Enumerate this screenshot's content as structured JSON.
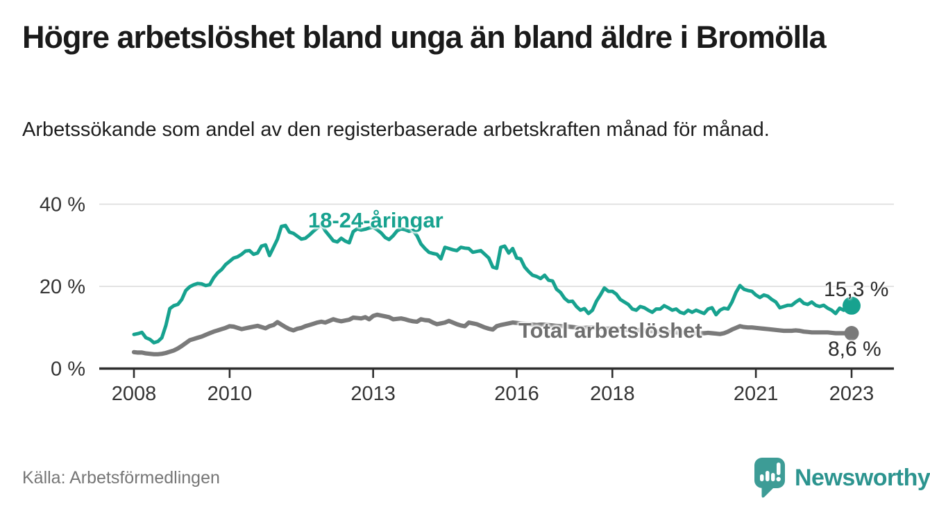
{
  "header": {
    "title": "Högre arbetslöshet bland unga än bland äldre i Bromölla",
    "subtitle": "Arbetssökande som andel av den registerbaserade arbetskraften månad för månad."
  },
  "chart_data": {
    "type": "line",
    "unit": "%",
    "frequency": "monthly",
    "x_start": "2008-01",
    "x_end": "2023-01",
    "ylim": [
      0,
      40
    ],
    "grid": "horizontal",
    "legend_position": "inline-labels",
    "yticks": [
      {
        "value": 0,
        "label": "0 %"
      },
      {
        "value": 20,
        "label": "20 %"
      },
      {
        "value": 40,
        "label": "40 %"
      }
    ],
    "xticks": [
      {
        "year": 2008,
        "label": "2008"
      },
      {
        "year": 2010,
        "label": "2010"
      },
      {
        "year": 2013,
        "label": "2013"
      },
      {
        "year": 2016,
        "label": "2016"
      },
      {
        "year": 2018,
        "label": "2018"
      },
      {
        "year": 2021,
        "label": "2021"
      },
      {
        "year": 2023,
        "label": "2023"
      }
    ],
    "series": [
      {
        "name": "18-24-åringar",
        "color": "#17a28f",
        "end_label": "15,3 %",
        "end_value": 15.3,
        "values": [
          8.3,
          8.5,
          8.8,
          7.5,
          7.1,
          6.3,
          6.6,
          7.5,
          10.5,
          14.6,
          15.3,
          15.6,
          16.8,
          19.0,
          19.9,
          20.4,
          20.7,
          20.6,
          20.2,
          20.4,
          22.1,
          23.3,
          24.1,
          25.3,
          26.1,
          26.9,
          27.2,
          27.8,
          28.6,
          28.7,
          27.8,
          28.1,
          29.8,
          30.1,
          27.5,
          29.5,
          31.5,
          34.6,
          34.8,
          33.2,
          32.9,
          32.2,
          31.5,
          31.7,
          32.5,
          33.4,
          34.2,
          35.1,
          33.5,
          32.3,
          31.1,
          30.8,
          31.7,
          31.0,
          30.6,
          33.3,
          34.0,
          33.7,
          33.9,
          34.2,
          34.4,
          33.8,
          33.0,
          31.9,
          31.4,
          32.3,
          33.5,
          34.0,
          33.8,
          33.4,
          33.6,
          32.3,
          30.3,
          29.2,
          28.3,
          28.0,
          27.8,
          26.7,
          29.5,
          29.2,
          28.9,
          28.7,
          29.5,
          29.3,
          29.2,
          28.3,
          28.5,
          28.7,
          27.8,
          26.9,
          24.7,
          24.4,
          29.5,
          29.8,
          28.1,
          29.2,
          26.9,
          26.7,
          24.7,
          23.6,
          22.7,
          22.4,
          21.9,
          22.7,
          21.5,
          21.3,
          19.3,
          18.5,
          17.1,
          16.3,
          16.4,
          15.1,
          14.2,
          14.6,
          13.4,
          14.2,
          16.4,
          17.9,
          19.6,
          18.8,
          18.8,
          18.1,
          16.8,
          16.2,
          15.6,
          14.5,
          14.2,
          15.1,
          14.8,
          14.2,
          13.7,
          14.5,
          14.5,
          15.3,
          14.8,
          14.2,
          14.5,
          13.7,
          13.4,
          14.2,
          13.7,
          14.2,
          13.8,
          13.4,
          14.5,
          14.8,
          13.1,
          14.2,
          14.7,
          14.5,
          16.2,
          18.5,
          20.2,
          19.3,
          19.0,
          18.8,
          17.9,
          17.3,
          17.9,
          17.6,
          16.8,
          16.2,
          14.8,
          15.1,
          15.4,
          15.4,
          16.2,
          16.8,
          15.9,
          15.6,
          16.2,
          15.4,
          15.1,
          15.4,
          14.7,
          14.2,
          13.4,
          14.7,
          14.2,
          15.6,
          15.3
        ]
      },
      {
        "name": "Total arbetslöshet",
        "color": "#7a7a7a",
        "end_label": "8,6 %",
        "end_value": 8.6,
        "values": [
          4.0,
          3.9,
          3.9,
          3.7,
          3.6,
          3.5,
          3.5,
          3.6,
          3.8,
          4.1,
          4.4,
          4.9,
          5.5,
          6.2,
          6.9,
          7.2,
          7.5,
          7.8,
          8.2,
          8.6,
          9.0,
          9.3,
          9.6,
          9.9,
          10.3,
          10.2,
          9.9,
          9.6,
          9.8,
          10.0,
          10.2,
          10.4,
          10.1,
          9.8,
          10.3,
          10.6,
          11.3,
          10.7,
          10.1,
          9.6,
          9.3,
          9.7,
          9.9,
          10.3,
          10.6,
          10.9,
          11.2,
          11.4,
          11.2,
          11.6,
          12.0,
          11.7,
          11.5,
          11.7,
          11.9,
          12.4,
          12.3,
          12.2,
          12.5,
          12.0,
          12.8,
          13.1,
          12.9,
          12.7,
          12.5,
          12.0,
          12.1,
          12.2,
          12.0,
          11.7,
          11.5,
          11.4,
          12.0,
          11.8,
          11.7,
          11.2,
          10.8,
          11.0,
          11.2,
          11.6,
          11.2,
          10.8,
          10.5,
          10.3,
          11.2,
          11.0,
          10.8,
          10.4,
          10.0,
          9.7,
          9.5,
          10.3,
          10.6,
          10.8,
          11.0,
          11.2,
          11.1,
          11.0,
          10.9,
          10.8,
          10.7,
          10.6,
          10.7,
          10.7,
          10.6,
          10.5,
          10.4,
          10.3,
          10.3,
          10.2,
          10.1,
          10.0,
          9.9,
          9.9,
          10.0,
          10.0,
          9.9,
          9.8,
          9.7,
          9.7,
          9.8,
          9.7,
          9.6,
          9.5,
          9.4,
          9.3,
          9.3,
          9.4,
          9.3,
          9.2,
          9.1,
          9.0,
          9.1,
          9.0,
          8.9,
          8.8,
          8.8,
          8.7,
          8.7,
          8.8,
          8.7,
          8.6,
          8.6,
          8.6,
          8.7,
          8.6,
          8.5,
          8.4,
          8.6,
          9.0,
          9.5,
          9.9,
          10.3,
          10.1,
          10.0,
          10.0,
          9.9,
          9.8,
          9.7,
          9.6,
          9.5,
          9.4,
          9.3,
          9.2,
          9.2,
          9.2,
          9.3,
          9.2,
          9.0,
          8.9,
          8.8,
          8.8,
          8.8,
          8.8,
          8.8,
          8.7,
          8.6,
          8.6,
          8.6,
          8.6,
          8.6
        ]
      }
    ]
  },
  "colors": {
    "accent_teal": "#17a28f",
    "line_gray": "#7a7a7a",
    "axis": "#2e2e2e",
    "grid": "#dcdcdc",
    "axis_text": "#333333",
    "value_text": "#2b2b2b",
    "source_text": "#767676",
    "logo_teal": "#3d9c96",
    "logo_text": "#2c948f"
  },
  "footer": {
    "source": "Källa: Arbetsförmedlingen",
    "brand": "Newsworthy"
  }
}
